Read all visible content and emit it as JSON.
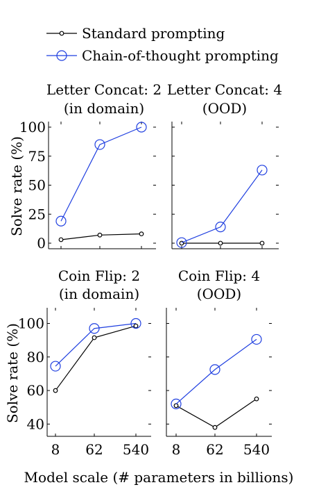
{
  "legend": [
    {
      "label": "Standard prompting",
      "color": "#000000",
      "marker": "small-circle"
    },
    {
      "label": "Chain-of-thought prompting",
      "color": "#1f3fe0",
      "marker": "large-circle"
    }
  ],
  "xlabel_common": "Model scale (# parameters in billions)",
  "chart_data": [
    {
      "type": "line",
      "title_lines": [
        "Letter Concat: 2",
        "(in domain)"
      ],
      "ylabel": "Solve rate (%)",
      "x": [
        "8",
        "62",
        "540"
      ],
      "yticks": [
        0,
        25,
        50,
        75,
        100
      ],
      "ylim": [
        0,
        100
      ],
      "series": [
        {
          "name": "Standard prompting",
          "values": [
            3,
            7,
            8
          ]
        },
        {
          "name": "Chain-of-thought prompting",
          "values": [
            19,
            85,
            100
          ]
        }
      ]
    },
    {
      "type": "line",
      "title_lines": [
        "Letter Concat: 4",
        "(OOD)"
      ],
      "ylabel": "",
      "x": [
        "8",
        "62",
        "540"
      ],
      "yticks": [],
      "ylim": [
        0,
        100
      ],
      "series": [
        {
          "name": "Standard prompting",
          "values": [
            0,
            0,
            0
          ]
        },
        {
          "name": "Chain-of-thought prompting",
          "values": [
            0.5,
            14,
            63
          ]
        }
      ]
    },
    {
      "type": "line",
      "title_lines": [
        "Coin Flip: 2",
        "(in domain)"
      ],
      "ylabel": "Solve rate (%)",
      "x": [
        "8",
        "62",
        "540"
      ],
      "xticks": [
        "8",
        "62",
        "540"
      ],
      "yticks": [
        40,
        60,
        80,
        100
      ],
      "ylim": [
        36,
        106
      ],
      "series": [
        {
          "name": "Standard prompting",
          "values": [
            60,
            91.5,
            98.5
          ]
        },
        {
          "name": "Chain-of-thought prompting",
          "values": [
            74.5,
            97,
            100
          ]
        }
      ]
    },
    {
      "type": "line",
      "title_lines": [
        "Coin Flip: 4",
        "(OOD)"
      ],
      "ylabel": "",
      "x": [
        "8",
        "62",
        "540"
      ],
      "xticks": [
        "8",
        "62",
        "540"
      ],
      "yticks": [],
      "ylim": [
        36,
        106
      ],
      "series": [
        {
          "name": "Standard prompting",
          "values": [
            51,
            38,
            55
          ]
        },
        {
          "name": "Chain-of-thought prompting",
          "values": [
            52,
            72.5,
            90.5
          ]
        }
      ]
    }
  ]
}
